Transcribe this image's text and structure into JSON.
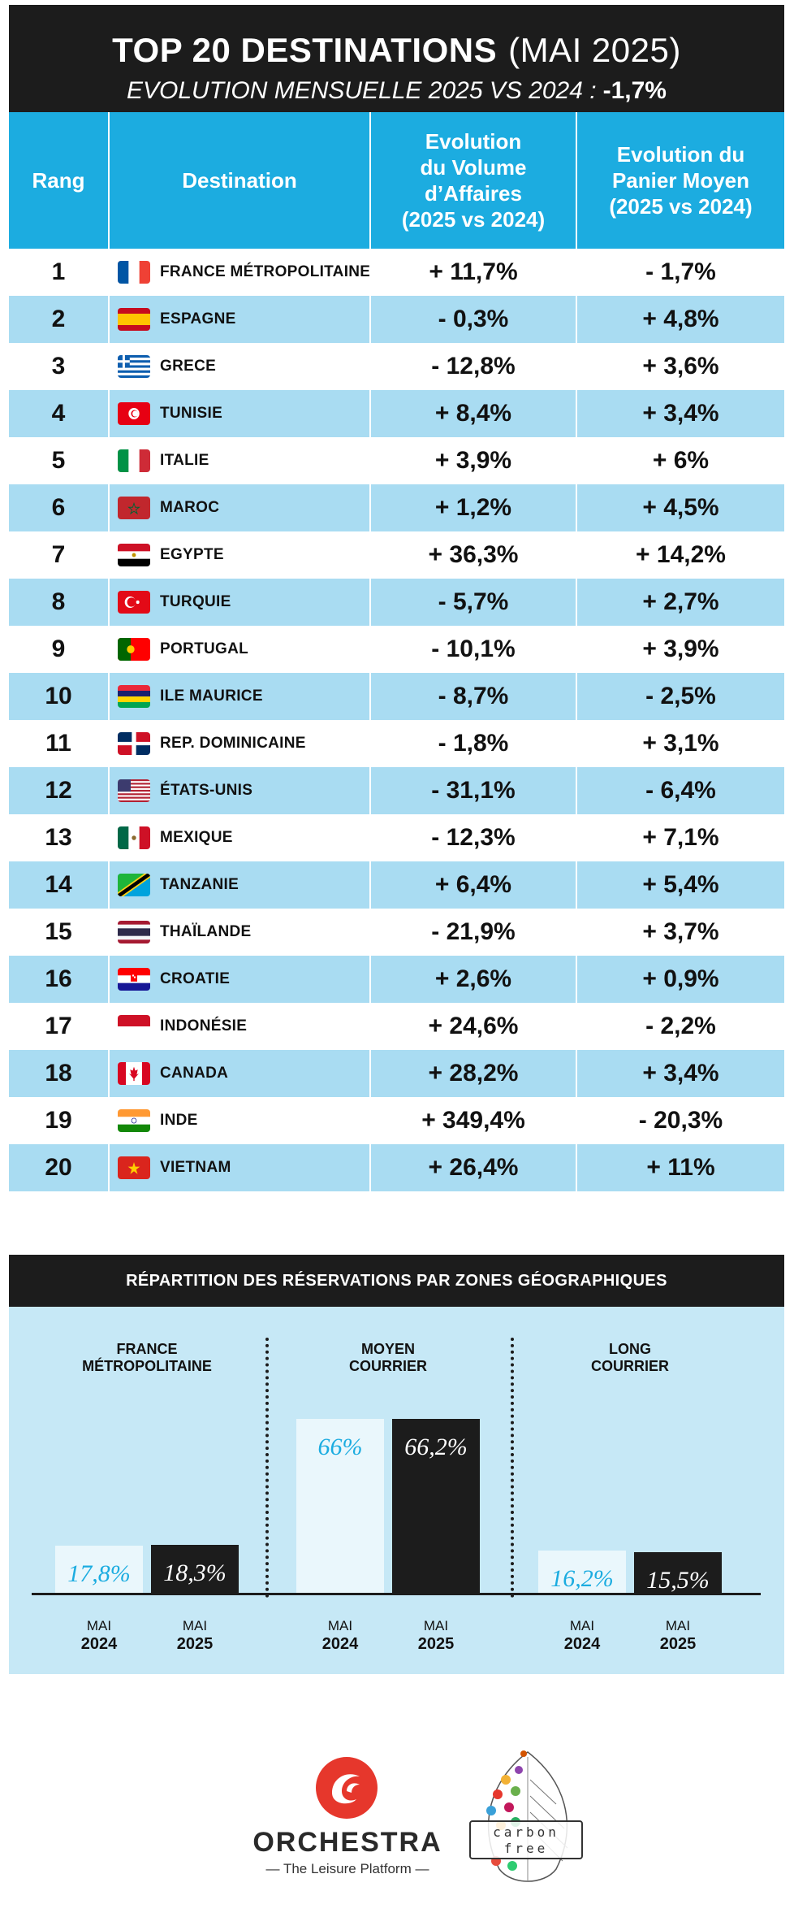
{
  "header": {
    "title_bold": "TOP 20 DESTINATIONS",
    "title_period": "(MAI 2025)",
    "subtitle": "EVOLUTION MENSUELLE 2025 VS 2024 :",
    "subtitle_value": "-1,7%"
  },
  "table": {
    "columns": [
      "Rang",
      "Destination",
      "Evolution\ndu Volume\nd’Affaires\n(2025 vs 2024)",
      "Evolution du\nPanier Moyen\n(2025 vs 2024)"
    ],
    "rows": [
      {
        "rank": "1",
        "flag": "france-flag",
        "destination": "FRANCE MÉTROPOLITAINE",
        "volume": "+ 11,7%",
        "panier": "- 1,7%"
      },
      {
        "rank": "2",
        "flag": "spain-flag",
        "destination": "ESPAGNE",
        "volume": "- 0,3%",
        "panier": "+ 4,8%"
      },
      {
        "rank": "3",
        "flag": "greece-flag",
        "destination": "GRECE",
        "volume": "- 12,8%",
        "panier": "+ 3,6%"
      },
      {
        "rank": "4",
        "flag": "tunisia-flag",
        "destination": "TUNISIE",
        "volume": "+ 8,4%",
        "panier": "+ 3,4%"
      },
      {
        "rank": "5",
        "flag": "italy-flag",
        "destination": "ITALIE",
        "volume": "+ 3,9%",
        "panier": "+ 6%"
      },
      {
        "rank": "6",
        "flag": "morocco-flag",
        "destination": "MAROC",
        "volume": "+ 1,2%",
        "panier": "+ 4,5%"
      },
      {
        "rank": "7",
        "flag": "egypt-flag",
        "destination": "EGYPTE",
        "volume": "+ 36,3%",
        "panier": "+ 14,2%"
      },
      {
        "rank": "8",
        "flag": "turkey-flag",
        "destination": "TURQUIE",
        "volume": "- 5,7%",
        "panier": "+ 2,7%"
      },
      {
        "rank": "9",
        "flag": "portugal-flag",
        "destination": "PORTUGAL",
        "volume": "- 10,1%",
        "panier": "+ 3,9%"
      },
      {
        "rank": "10",
        "flag": "mauritius-flag",
        "destination": "ILE MAURICE",
        "volume": "- 8,7%",
        "panier": "- 2,5%"
      },
      {
        "rank": "11",
        "flag": "dominican-republic-flag",
        "destination": "REP. DOMINICAINE",
        "volume": "- 1,8%",
        "panier": "+ 3,1%"
      },
      {
        "rank": "12",
        "flag": "usa-flag",
        "destination": "ÉTATS-UNIS",
        "volume": "- 31,1%",
        "panier": "- 6,4%"
      },
      {
        "rank": "13",
        "flag": "mexico-flag",
        "destination": "MEXIQUE",
        "volume": "- 12,3%",
        "panier": "+ 7,1%"
      },
      {
        "rank": "14",
        "flag": "tanzania-flag",
        "destination": "TANZANIE",
        "volume": "+ 6,4%",
        "panier": "+ 5,4%"
      },
      {
        "rank": "15",
        "flag": "thailand-flag",
        "destination": "THAÏLANDE",
        "volume": "- 21,9%",
        "panier": "+ 3,7%"
      },
      {
        "rank": "16",
        "flag": "croatia-flag",
        "destination": "CROATIE",
        "volume": "+ 2,6%",
        "panier": "+ 0,9%"
      },
      {
        "rank": "17",
        "flag": "indonesia-flag",
        "destination": "INDONÉSIE",
        "volume": "+ 24,6%",
        "panier": "- 2,2%"
      },
      {
        "rank": "18",
        "flag": "canada-flag",
        "destination": "CANADA",
        "volume": "+ 28,2%",
        "panier": "+ 3,4%"
      },
      {
        "rank": "19",
        "flag": "india-flag",
        "destination": "INDE",
        "volume": "+ 349,4%",
        "panier": "- 20,3%"
      },
      {
        "rank": "20",
        "flag": "vietnam-flag",
        "destination": "VIETNAM",
        "volume": "+ 26,4%",
        "panier": "+ 11%"
      }
    ]
  },
  "zones": {
    "title": "RÉPARTITION DES RÉSERVATIONS PAR ZONES GÉOGRAPHIQUES"
  },
  "chart_data": {
    "type": "bar",
    "title": "RÉPARTITION DES RÉSERVATIONS PAR ZONES GÉOGRAPHIQUES",
    "categories": [
      "FRANCE\nMÉTROPOLITAINE",
      "MOYEN\nCOURRIER",
      "LONG\nCOURRIER"
    ],
    "series": [
      {
        "month": "MAI",
        "year": "2024",
        "values": [
          17.8,
          66,
          16.2
        ],
        "labels": [
          "17,8%",
          "66%",
          "16,2%"
        ],
        "color": "#eaf7fc",
        "label_color": "#1cace0"
      },
      {
        "month": "MAI",
        "year": "2025",
        "values": [
          18.3,
          66.2,
          15.5
        ],
        "labels": [
          "18,3%",
          "66,2%",
          "15,5%"
        ],
        "color": "#1c1c1c",
        "label_color": "#ffffff"
      }
    ],
    "ylim": [
      0,
      100
    ],
    "grid": false
  },
  "colors": {
    "header_bg": "#1c1c1c",
    "accent_blue": "#1cace0",
    "row_alt": "#a9dcf2",
    "zone_bg": "#c6e8f6"
  },
  "footer": {
    "brand_name": "ORCHESTRA",
    "brand_tagline": "— The Leisure Platform —",
    "badge_line1": "carbon",
    "badge_line2": "free"
  }
}
